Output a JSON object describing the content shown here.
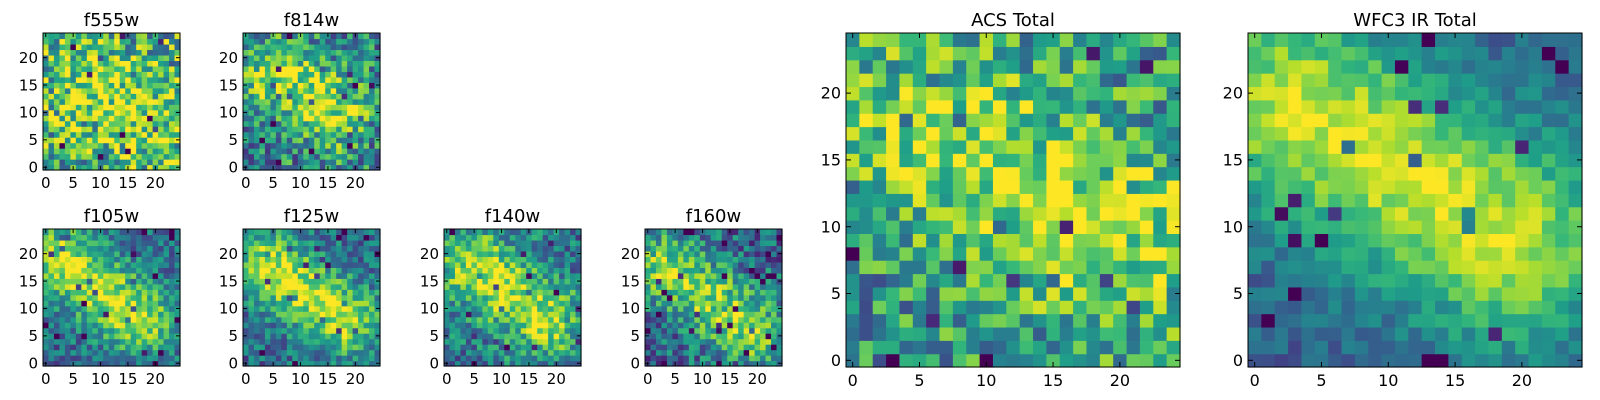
{
  "chart_data": [
    {
      "id": "f555w",
      "type": "heatmap",
      "title": "f555w",
      "xlabel": "",
      "ylabel": "",
      "size": 25,
      "xlim": [
        -0.5,
        24.5
      ],
      "ylim": [
        -0.5,
        24.5
      ],
      "xticks": [
        0,
        5,
        10,
        15,
        20
      ],
      "yticks": [
        0,
        5,
        10,
        15,
        20
      ],
      "colormap": "viridis",
      "blob": {
        "x0": 8,
        "y0": 16,
        "x1": 18,
        "y1": 8,
        "width": 5,
        "strength": 0.25
      },
      "base": 0.62,
      "noise": 0.38,
      "seed": 11,
      "color_range": [
        0,
        1
      ]
    },
    {
      "id": "f814w",
      "type": "heatmap",
      "title": "f814w",
      "xlabel": "",
      "ylabel": "",
      "size": 25,
      "xlim": [
        -0.5,
        24.5
      ],
      "ylim": [
        -0.5,
        24.5
      ],
      "xticks": [
        0,
        5,
        10,
        15,
        20
      ],
      "yticks": [
        0,
        5,
        10,
        15,
        20
      ],
      "colormap": "viridis",
      "blob": {
        "x0": 6,
        "y0": 17,
        "x1": 16,
        "y1": 10,
        "width": 4.5,
        "strength": 0.45
      },
      "base": 0.45,
      "noise": 0.32,
      "seed": 23,
      "color_range": [
        0,
        1
      ]
    },
    {
      "id": "f105w",
      "type": "heatmap",
      "title": "f105w",
      "xlabel": "",
      "ylabel": "",
      "size": 25,
      "xlim": [
        -0.5,
        24.5
      ],
      "ylim": [
        -0.5,
        24.5
      ],
      "xticks": [
        0,
        5,
        10,
        15,
        20
      ],
      "yticks": [
        0,
        5,
        10,
        15,
        20
      ],
      "colormap": "viridis",
      "blob": {
        "x0": 3,
        "y0": 19,
        "x1": 17,
        "y1": 8,
        "width": 4.5,
        "strength": 0.55
      },
      "base": 0.35,
      "noise": 0.22,
      "seed": 37,
      "color_range": [
        0,
        1
      ]
    },
    {
      "id": "f125w",
      "type": "heatmap",
      "title": "f125w",
      "xlabel": "",
      "ylabel": "",
      "size": 25,
      "xlim": [
        -0.5,
        24.5
      ],
      "ylim": [
        -0.5,
        24.5
      ],
      "xticks": [
        0,
        5,
        10,
        15,
        20
      ],
      "yticks": [
        0,
        5,
        10,
        15,
        20
      ],
      "colormap": "viridis",
      "blob": {
        "x0": 4,
        "y0": 18,
        "x1": 18,
        "y1": 8,
        "width": 4.5,
        "strength": 0.55
      },
      "base": 0.35,
      "noise": 0.22,
      "seed": 41,
      "color_range": [
        0,
        1
      ]
    },
    {
      "id": "f140w",
      "type": "heatmap",
      "title": "f140w",
      "xlabel": "",
      "ylabel": "",
      "size": 25,
      "xlim": [
        -0.5,
        24.5
      ],
      "ylim": [
        -0.5,
        24.5
      ],
      "xticks": [
        0,
        5,
        10,
        15,
        20
      ],
      "yticks": [
        0,
        5,
        10,
        15,
        20
      ],
      "colormap": "viridis",
      "blob": {
        "x0": 5,
        "y0": 18,
        "x1": 18,
        "y1": 8,
        "width": 5,
        "strength": 0.5
      },
      "base": 0.38,
      "noise": 0.25,
      "seed": 53,
      "color_range": [
        0,
        1
      ]
    },
    {
      "id": "f160w",
      "type": "heatmap",
      "title": "f160w",
      "xlabel": "",
      "ylabel": "",
      "size": 25,
      "xlim": [
        -0.5,
        24.5
      ],
      "ylim": [
        -0.5,
        24.5
      ],
      "xticks": [
        0,
        5,
        10,
        15,
        20
      ],
      "yticks": [
        0,
        5,
        10,
        15,
        20
      ],
      "colormap": "viridis",
      "blob": {
        "x0": 3,
        "y0": 18,
        "x1": 19,
        "y1": 6,
        "width": 4.5,
        "strength": 0.5
      },
      "base": 0.33,
      "noise": 0.26,
      "seed": 67,
      "color_range": [
        0,
        1
      ]
    },
    {
      "id": "acs_total",
      "type": "heatmap",
      "title": "ACS Total",
      "xlabel": "",
      "ylabel": "",
      "size": 25,
      "xlim": [
        -0.5,
        24.5
      ],
      "ylim": [
        -0.5,
        24.5
      ],
      "xticks": [
        0,
        5,
        10,
        15,
        20
      ],
      "yticks": [
        0,
        5,
        10,
        15,
        20
      ],
      "colormap": "viridis",
      "blob": {
        "x0": 6,
        "y0": 17,
        "x1": 20,
        "y1": 9,
        "width": 5,
        "strength": 0.35
      },
      "base": 0.52,
      "noise": 0.3,
      "seed": 79,
      "color_range": [
        0,
        1
      ]
    },
    {
      "id": "wfc3_ir_total",
      "type": "heatmap",
      "title": "WFC3 IR Total",
      "xlabel": "",
      "ylabel": "",
      "size": 25,
      "xlim": [
        -0.5,
        24.5
      ],
      "ylim": [
        -0.5,
        24.5
      ],
      "xticks": [
        0,
        5,
        10,
        15,
        20
      ],
      "yticks": [
        0,
        5,
        10,
        15,
        20
      ],
      "colormap": "viridis",
      "blob": {
        "x0": 3,
        "y0": 19,
        "x1": 19,
        "y1": 9,
        "width": 5.5,
        "strength": 0.62
      },
      "base": 0.3,
      "noise": 0.12,
      "seed": 97,
      "color_range": [
        0,
        1
      ]
    }
  ]
}
